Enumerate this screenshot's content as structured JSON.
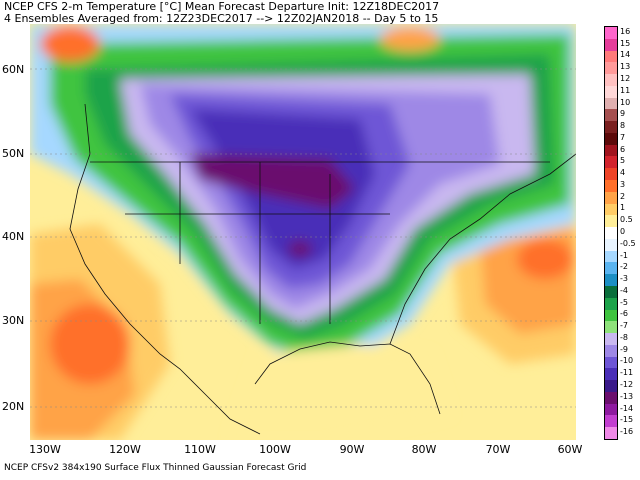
{
  "header": {
    "line1": "NCEP CFS 2-m Temperature [°C] Mean Forecast Departure Init: 12Z18DEC2017",
    "line2": "4 Ensembles Averaged from: 12Z23DEC2017 --> 12Z02JAN2018 -- Day 5 to 15"
  },
  "map": {
    "lat_labels": [
      "60N",
      "50N",
      "40N",
      "30N",
      "20N"
    ],
    "lon_labels": [
      "130W",
      "120W",
      "110W",
      "100W",
      "90W",
      "80W",
      "70W",
      "60W"
    ]
  },
  "footer": "NCEP CFSv2 384x190 Surface Flux Thinned Gaussian Forecast Grid",
  "colorbar": {
    "labels": [
      "16",
      "15",
      "14",
      "13",
      "12",
      "11",
      "10",
      "9",
      "8",
      "7",
      "6",
      "5",
      "4",
      "3",
      "2",
      "1",
      "0.5",
      "0",
      "-0.5",
      "-1",
      "-2",
      "-3",
      "-4",
      "-5",
      "-6",
      "-7",
      "-8",
      "-9",
      "-10",
      "-11",
      "-12",
      "-13",
      "-14",
      "-15",
      "-16"
    ],
    "colors": [
      "#ff66cc",
      "#e53d9a",
      "#ff7a7a",
      "#ff9a9a",
      "#ffc1c1",
      "#ffd8d8",
      "#e0b0b0",
      "#a55050",
      "#7a2020",
      "#5c0a0a",
      "#a0141e",
      "#d2232d",
      "#ee4428",
      "#ff6f2a",
      "#ffa347",
      "#ffcc66",
      "#ffee99",
      "#ffffff",
      "#e8f4ff",
      "#a6d8ff",
      "#5ab4f0",
      "#1c8fc4",
      "#0a6f3c",
      "#1ca34a",
      "#3fc43f",
      "#8ee27a",
      "#c9b8f0",
      "#9e88e6",
      "#6e56d6",
      "#4a2fb8",
      "#3a1a8a",
      "#6b0f6e",
      "#8e1aa0",
      "#c23ed0",
      "#f08ae8"
    ]
  }
}
